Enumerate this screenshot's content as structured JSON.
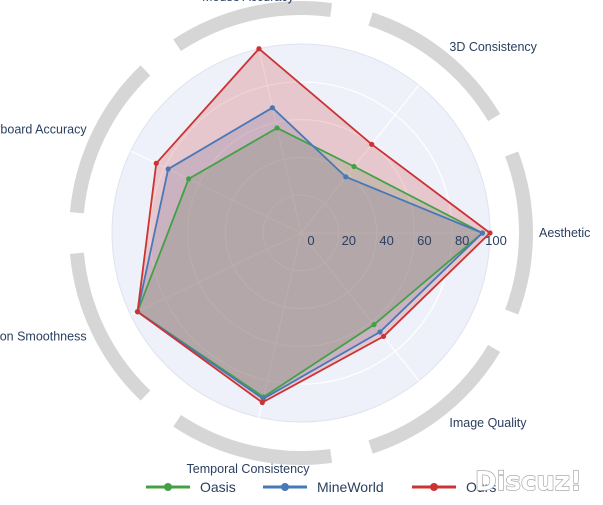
{
  "chart_data": {
    "type": "radar",
    "axes": [
      "Aesthetic",
      "3D Consistency",
      "Mouse Accuracy",
      "Keyboard Accuracy",
      "Motion Smoothness",
      "Temporal Consistency",
      "Image Quality"
    ],
    "radial_ticks": [
      "0",
      "20",
      "40",
      "60",
      "80",
      "100"
    ],
    "rlim": [
      0,
      100
    ],
    "grid": true,
    "legend_position": "bottom",
    "series": [
      {
        "name": "Oasis",
        "color": "#43a047",
        "values": [
          96,
          45,
          57,
          66,
          96,
          89,
          62
        ]
      },
      {
        "name": "MineWorld",
        "color": "#4778b8",
        "values": [
          96,
          38,
          68,
          78,
          96,
          90,
          67
        ]
      },
      {
        "name": "Ours",
        "color": "#cc3333",
        "values": [
          100,
          60,
          100,
          85,
          96,
          92,
          70
        ]
      }
    ]
  },
  "legend": {
    "entries": [
      "Oasis",
      "MineWorld",
      "Ours"
    ]
  },
  "watermark": {
    "text": "Discuz!"
  }
}
